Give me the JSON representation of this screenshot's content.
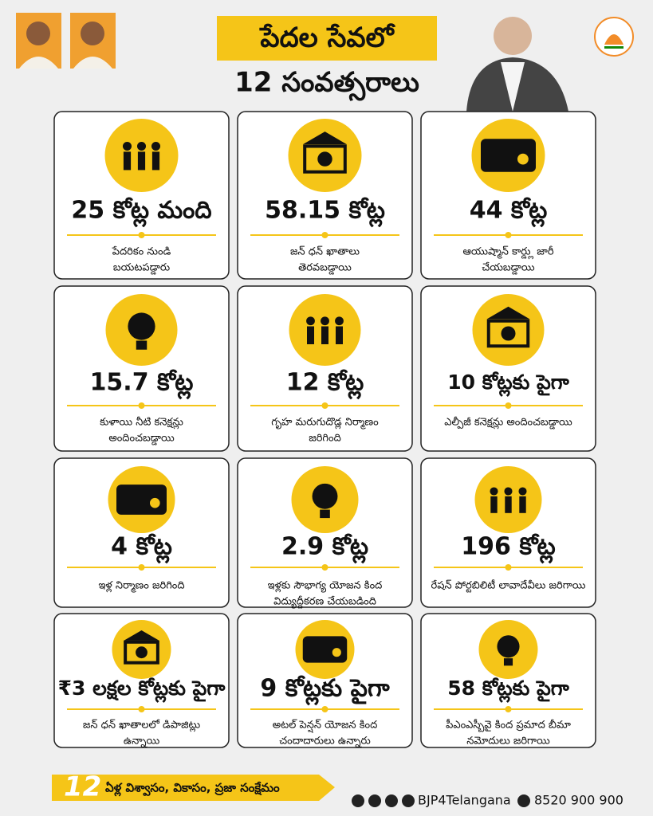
{
  "header": {
    "title_line1": "పేదల సేవలో",
    "title_line2": "12 సంవత్సరాలు"
  },
  "cards": [
    {
      "headline": "25 కోట్ల మంది",
      "description": [
        "పేదరికం నుండి",
        "బయటపడ్డారు"
      ]
    },
    {
      "headline": "58.15 కోట్ల",
      "description": [
        "జన్ ధన్ ఖాతాలు",
        "తెరవబడ్డాయి"
      ]
    },
    {
      "headline": "44 కోట్ల",
      "description": [
        "ఆయుష్మాన్ కార్డ్లు జారీ",
        "చేయబడ్డాయి"
      ]
    },
    {
      "headline": "15.7 కోట్ల",
      "description": [
        "కుళాయి నీటి కనెక్షన్లు",
        "అందించబడ్డాయి"
      ]
    },
    {
      "headline": "12 కోట్ల",
      "description": [
        "గృహ మరుగుదొడ్ల నిర్మాణం",
        "జరిగింది"
      ]
    },
    {
      "headline": "10 కోట్లకు పైగా",
      "description": [
        "ఎల్పీజీ కనెక్షన్లు అందించబడ్డాయి"
      ]
    },
    {
      "headline": "4 కోట్ల",
      "description": [
        "ఇళ్ల నిర్మాణం జరిగింది"
      ]
    },
    {
      "headline": "2.9 కోట్ల",
      "description": [
        "ఇళ్లకు సౌభాగ్య యోజన కింద",
        "విద్యుద్దీకరణ చేయబడింది"
      ]
    },
    {
      "headline": "196 కోట్ల",
      "description": [
        "రేషన్ పోర్టబిలిటీ లావాదేవీలు జరిగాయి"
      ]
    },
    {
      "headline": "₹3 లక్షల కోట్లకు పైగా",
      "description": [
        "జన్ ధన్ ఖాతాలలో డిపాజిట్లు",
        "ఉన్నాయి"
      ]
    },
    {
      "headline": "9 కోట్లకు పైగా",
      "description": [
        "అటల్ పెన్షన్ యోజన కింద",
        "చందాదారులు ఉన్నారు"
      ]
    },
    {
      "headline": "58 కోట్లకు పైగా",
      "description": [
        "పీఎంఎస్బీవై కింద ప్రమాద బీమా",
        "నమోదులు జరిగాయి"
      ]
    }
  ],
  "footer": {
    "tagline_number": "12",
    "tagline": "ఏళ్ల విశ్వాసం, వికాసం, ప్రజా సంక్షేమం",
    "social_handle": "BJP4Telangana",
    "phone": "8520 900 900"
  }
}
